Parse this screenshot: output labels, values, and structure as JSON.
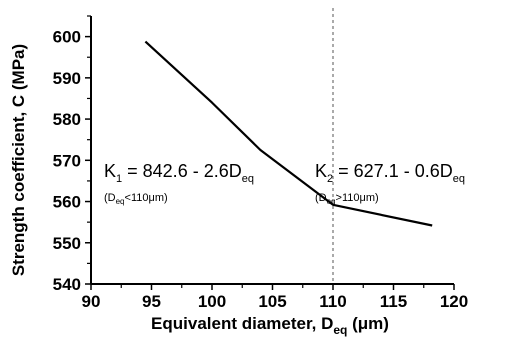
{
  "chart_data": {
    "type": "line",
    "xlabel": "Equivalent diameter, D",
    "xlabel_sub": "eq",
    "xlabel_unit": " (μm)",
    "ylabel": "Strength coefficient, C (MPa)",
    "xlim": [
      90,
      120
    ],
    "ylim": [
      540,
      605
    ],
    "xticks": [
      "90",
      "95",
      "100",
      "105",
      "110",
      "115",
      "120"
    ],
    "yticks": [
      "540",
      "550",
      "560",
      "570",
      "580",
      "590",
      "600"
    ],
    "grid": false,
    "series": [
      {
        "x": [
          94.5,
          100,
          104,
          110,
          118.2
        ],
        "y": [
          598.8,
          584,
          572.5,
          559.2,
          554.2
        ]
      }
    ],
    "reference_line": {
      "x": 110,
      "style": "dashed"
    },
    "annotations": [
      {
        "k": "K",
        "k_sub": "1",
        "text": " = 842.6 - 2.6D",
        "text_sub": "eq",
        "cond_open": "(D",
        "cond_sub": "eq",
        "cond_rest": "<110μm)"
      },
      {
        "k": "K",
        "k_sub": "2",
        "text": " = 627.1 - 0.6D",
        "text_sub": "eq",
        "cond_open": "(D",
        "cond_sub": "eq",
        "cond_rest": ">110μm)"
      }
    ]
  }
}
